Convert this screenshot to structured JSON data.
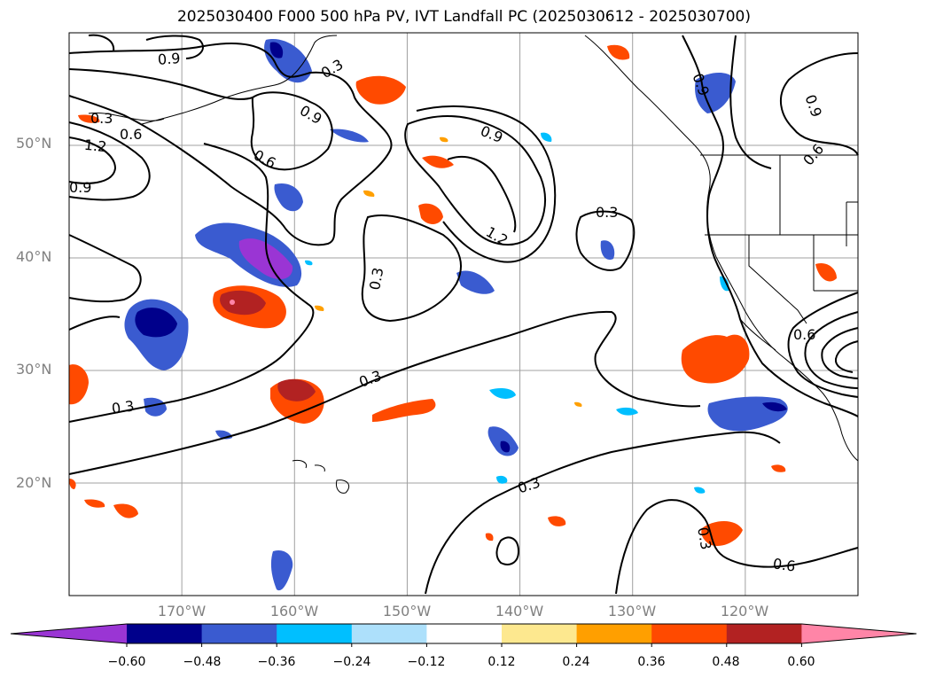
{
  "title": "2025030400 F000 500 hPa PV, IVT Landfall PC (2025030612 - 2025030700)",
  "map": {
    "extent": {
      "lon_min": -180,
      "lon_max": -110,
      "lat_min": 10,
      "lat_max": 60
    },
    "lat_ticks": [
      {
        "value": 50,
        "label": "50°N"
      },
      {
        "value": 40,
        "label": "40°N"
      },
      {
        "value": 30,
        "label": "30°N"
      },
      {
        "value": 20,
        "label": "20°N"
      }
    ],
    "lon_ticks": [
      {
        "value": -170,
        "label": "170°W"
      },
      {
        "value": -160,
        "label": "160°W"
      },
      {
        "value": -150,
        "label": "150°W"
      },
      {
        "value": -140,
        "label": "140°W"
      },
      {
        "value": -130,
        "label": "130°W"
      },
      {
        "value": -120,
        "label": "120°W"
      }
    ],
    "gridlines": true,
    "contour_labels": [
      "0.9",
      "0.3",
      "0.3",
      "0.6",
      "1.2",
      "0.9",
      "0.9",
      "0.6",
      "0.9",
      "1.2",
      "0.3",
      "0.3",
      "0.3",
      "0.3",
      "0.3",
      "0.9",
      "0.9",
      "0.6",
      "0.6",
      "0.3",
      "0.6"
    ]
  },
  "colorbar": {
    "ticks": [
      "−0.60",
      "−0.48",
      "−0.36",
      "−0.24",
      "−0.12",
      "0.12",
      "0.24",
      "0.36",
      "0.48",
      "0.60"
    ],
    "colors": [
      "#9a35d4",
      "#00008b",
      "#3a5bd0",
      "#00bfff",
      "#ade0fb",
      "#ffffff",
      "#fde88f",
      "#ff9f00",
      "#ff4a00",
      "#b22222",
      "#ff85a7"
    ]
  }
}
